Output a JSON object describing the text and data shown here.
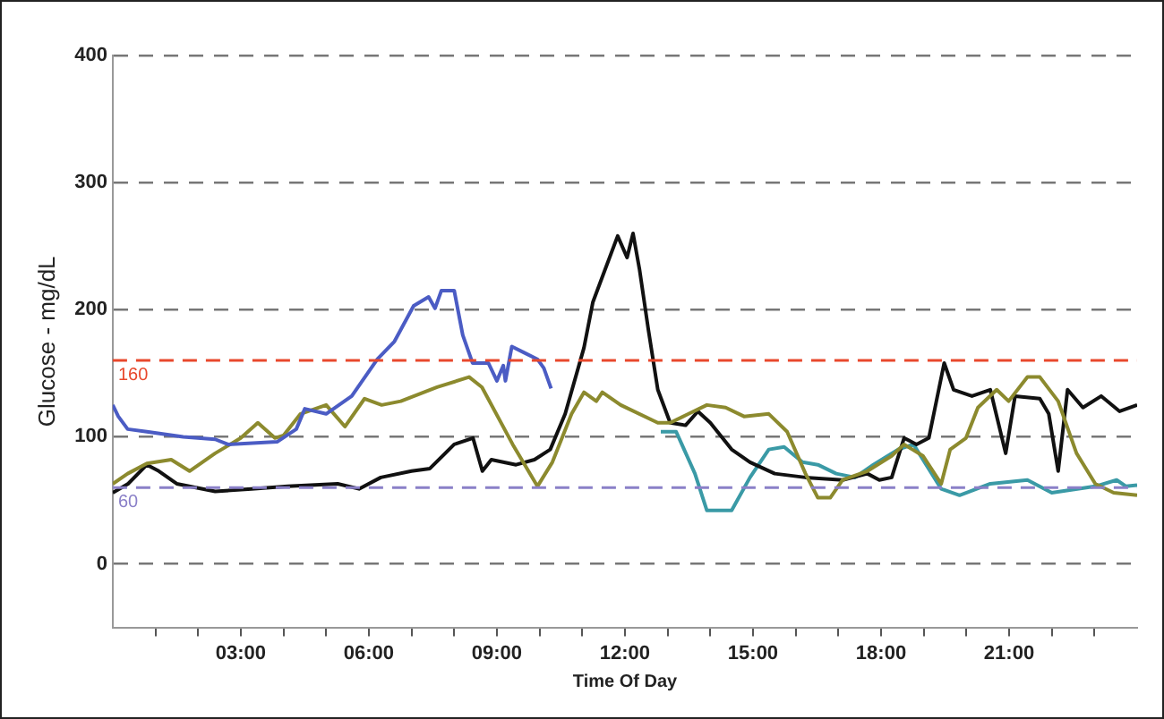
{
  "chart_data": {
    "type": "line",
    "xlabel": "Time Of Day",
    "ylabel": "Glucose - mg/dL",
    "xlim": [
      0,
      24
    ],
    "ylim": [
      -50,
      400
    ],
    "xticks": [
      {
        "value": 1,
        "label": null
      },
      {
        "value": 2,
        "label": null
      },
      {
        "value": 3,
        "label": "03:00"
      },
      {
        "value": 4,
        "label": null
      },
      {
        "value": 5,
        "label": null
      },
      {
        "value": 6,
        "label": "06:00"
      },
      {
        "value": 7,
        "label": null
      },
      {
        "value": 8,
        "label": null
      },
      {
        "value": 9,
        "label": "09:00"
      },
      {
        "value": 10,
        "label": null
      },
      {
        "value": 11,
        "label": null
      },
      {
        "value": 12,
        "label": "12:00"
      },
      {
        "value": 13,
        "label": null
      },
      {
        "value": 14,
        "label": null
      },
      {
        "value": 15,
        "label": "15:00"
      },
      {
        "value": 16,
        "label": null
      },
      {
        "value": 17,
        "label": null
      },
      {
        "value": 18,
        "label": "18:00"
      },
      {
        "value": 19,
        "label": null
      },
      {
        "value": 20,
        "label": null
      },
      {
        "value": 21,
        "label": "21:00"
      },
      {
        "value": 22,
        "label": null
      },
      {
        "value": 23,
        "label": null
      }
    ],
    "yticks": [
      0,
      100,
      200,
      300,
      400
    ],
    "grid": "y",
    "legend": false,
    "line_style": "solid",
    "ref_lines": [
      {
        "axis": "y",
        "value": 160,
        "label": "160",
        "color": "#e8482c",
        "line_style": "dashed"
      },
      {
        "axis": "y",
        "value": 60,
        "label": "60",
        "color": "#8a80c8",
        "line_style": "dashed"
      }
    ],
    "series": [
      {
        "color": "#4b5cc4",
        "x": [
          0,
          0.13,
          0.35,
          0.8,
          1.65,
          2.4,
          2.7,
          3.85,
          4.3,
          4.5,
          5.0,
          5.6,
          6.2,
          6.6,
          7.05,
          7.4,
          7.55,
          7.7,
          8.0,
          8.2,
          8.43,
          8.8,
          9.0,
          9.15,
          9.2,
          9.35,
          9.65,
          9.95,
          10.1,
          10.27
        ],
        "values": [
          125,
          116,
          106,
          104,
          100,
          98,
          94,
          96,
          106,
          122,
          118,
          132,
          161,
          175,
          203,
          210,
          201,
          215,
          215,
          180,
          158,
          158,
          144,
          156,
          144,
          171,
          166,
          161,
          154,
          138
        ]
      },
      {
        "color": "#8c8a2e",
        "x": [
          0,
          0.35,
          0.8,
          1.37,
          1.8,
          2.4,
          3.0,
          3.4,
          3.8,
          4.0,
          4.4,
          5.0,
          5.44,
          5.9,
          6.3,
          6.75,
          7.6,
          8.35,
          8.65,
          9.37,
          9.95,
          10.3,
          10.75,
          11.04,
          11.33,
          11.47,
          11.9,
          12.77,
          13.06,
          13.49,
          13.92,
          14.36,
          14.79,
          15.37,
          15.8,
          16.23,
          16.52,
          16.81,
          17.1,
          17.68,
          18.25,
          18.54,
          18.98,
          19.41,
          19.62,
          19.99,
          20.27,
          20.71,
          20.99,
          21.43,
          21.72,
          22.15,
          22.58,
          23.02,
          23.45,
          24.0
        ],
        "values": [
          63,
          71,
          79,
          82,
          73,
          87,
          99,
          111,
          99,
          101,
          118,
          125,
          108,
          130,
          125,
          128,
          139,
          147,
          139,
          94,
          61,
          80,
          118,
          135,
          128,
          135,
          125,
          111,
          111,
          118,
          125,
          123,
          116,
          118,
          104,
          71,
          52,
          52,
          66,
          73,
          85,
          94,
          85,
          63,
          90,
          99,
          123,
          137,
          128,
          147,
          147,
          128,
          87,
          63,
          56,
          54
        ]
      },
      {
        "color": "#111111",
        "x": [
          0,
          0.36,
          0.8,
          1.08,
          1.5,
          2.4,
          3.25,
          4.1,
          5.27,
          5.77,
          6.28,
          7.0,
          7.43,
          8.0,
          8.44,
          8.66,
          8.87,
          9.45,
          9.88,
          10.25,
          10.6,
          11.04,
          11.25,
          11.54,
          11.83,
          12.05,
          12.19,
          12.34,
          12.55,
          12.77,
          13.06,
          13.42,
          13.71,
          14.0,
          14.5,
          14.93,
          15.51,
          16.23,
          17.1,
          17.68,
          17.96,
          18.25,
          18.54,
          18.83,
          19.12,
          19.48,
          19.7,
          20.13,
          20.56,
          20.92,
          21.14,
          21.72,
          21.93,
          22.15,
          22.37,
          22.73,
          23.16,
          23.59,
          24.0
        ],
        "values": [
          56,
          63,
          78,
          73,
          63,
          57,
          59,
          61,
          63,
          59,
          68,
          73,
          75,
          94,
          99,
          73,
          82,
          78,
          82,
          90,
          118,
          170,
          206,
          232,
          258,
          241,
          260,
          232,
          184,
          137,
          111,
          109,
          120,
          111,
          90,
          80,
          71,
          68,
          66,
          71,
          66,
          68,
          99,
          94,
          99,
          158,
          137,
          132,
          137,
          87,
          132,
          130,
          118,
          73,
          137,
          123,
          132,
          120,
          125
        ]
      },
      {
        "color": "#3a9aa6",
        "x": [
          12.84,
          13.2,
          13.64,
          13.92,
          14.5,
          14.93,
          15.37,
          15.73,
          16.16,
          16.52,
          16.95,
          17.39,
          17.82,
          18.4,
          18.76,
          19.41,
          19.84,
          20.56,
          21.43,
          22.0,
          23.02,
          23.52,
          23.74,
          24.0
        ],
        "values": [
          104,
          104,
          71,
          42,
          42,
          68,
          90,
          92,
          80,
          78,
          71,
          68,
          78,
          90,
          94,
          59,
          54,
          63,
          66,
          56,
          61,
          66,
          61,
          62
        ]
      }
    ]
  }
}
